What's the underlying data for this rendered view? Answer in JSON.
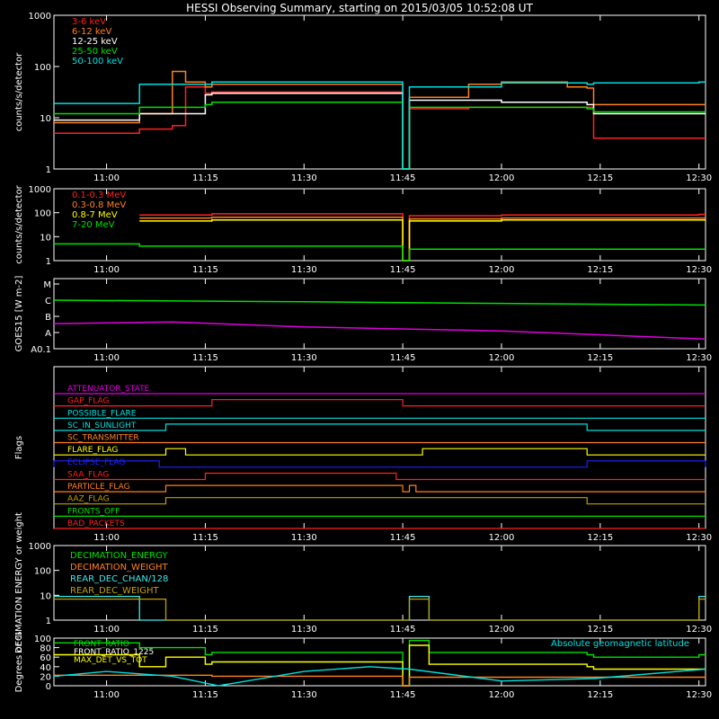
{
  "title": "HESSI Observing Summary, starting on 2015/03/05 10:52:08 UT",
  "colors": {
    "red": "#ff2020",
    "orange": "#ff8020",
    "white": "#ffffff",
    "yellow": "#ffff00",
    "green": "#00e000",
    "cyan": "#00e0e0",
    "magenta": "#e000e0",
    "blue": "#2020ff",
    "olive": "#c0a000",
    "lightcyan": "#40e8e8"
  },
  "chart_data": [
    {
      "type": "line",
      "id": "panel-1",
      "ylabel": "counts/s/detector",
      "yscale": "log",
      "ylim": [
        1,
        1000
      ],
      "y_ticks": [
        "1",
        "10",
        "100",
        "1000"
      ],
      "x_ticks": [
        "11:00",
        "11:15",
        "11:30",
        "11:45",
        "12:00",
        "12:15",
        "12:30"
      ],
      "legend": "top-left",
      "series": [
        {
          "name": "3-6 keV",
          "color": "red",
          "x": [
            "10:52",
            "11:04",
            "11:05",
            "11:10",
            "11:12",
            "11:15",
            "11:16",
            "11:45",
            "11:46",
            "11:55",
            "12:00",
            "12:10",
            "12:13",
            "12:14",
            "12:30",
            "12:31"
          ],
          "y": [
            5,
            5,
            6,
            7,
            40,
            30,
            32,
            0,
            15,
            16,
            16,
            16,
            16,
            4,
            4,
            4
          ]
        },
        {
          "name": "6-12 keV",
          "color": "orange",
          "x": [
            "10:52",
            "11:04",
            "11:05",
            "11:10",
            "11:12",
            "11:15",
            "11:16",
            "11:45",
            "11:46",
            "11:55",
            "12:00",
            "12:10",
            "12:13",
            "12:14",
            "12:30",
            "12:31"
          ],
          "y": [
            8,
            8,
            12,
            80,
            50,
            40,
            45,
            0,
            25,
            45,
            50,
            40,
            38,
            18,
            18,
            18
          ]
        },
        {
          "name": "12-25 keV",
          "color": "white",
          "x": [
            "10:52",
            "11:04",
            "11:05",
            "11:15",
            "11:16",
            "11:45",
            "11:46",
            "12:00",
            "12:13",
            "12:14",
            "12:30",
            "12:31"
          ],
          "y": [
            9,
            9,
            12,
            28,
            30,
            0,
            22,
            20,
            18,
            12,
            12,
            12
          ]
        },
        {
          "name": "25-50 keV",
          "color": "green",
          "x": [
            "10:52",
            "11:04",
            "11:05",
            "11:15",
            "11:16",
            "11:45",
            "11:46",
            "12:00",
            "12:13",
            "12:14",
            "12:30",
            "12:31"
          ],
          "y": [
            12,
            12,
            16,
            18,
            20,
            0,
            16,
            16,
            15,
            13,
            13,
            13
          ]
        },
        {
          "name": "50-100 keV",
          "color": "cyan",
          "x": [
            "10:52",
            "11:04",
            "11:05",
            "11:15",
            "11:16",
            "11:45",
            "11:46",
            "12:00",
            "12:13",
            "12:14",
            "12:30",
            "12:31"
          ],
          "y": [
            19,
            19,
            45,
            45,
            50,
            0,
            40,
            48,
            45,
            48,
            50,
            50
          ]
        }
      ]
    },
    {
      "type": "line",
      "id": "panel-2",
      "ylabel": "counts/s/detector",
      "yscale": "log",
      "ylim": [
        1,
        1000
      ],
      "y_ticks": [
        "1",
        "10",
        "100",
        "1000"
      ],
      "x_ticks": [
        "11:00",
        "11:15",
        "11:30",
        "11:45",
        "12:00",
        "12:15",
        "12:30"
      ],
      "legend": "top-left",
      "series": [
        {
          "name": "0.1-0.3 MeV",
          "color": "red",
          "x": [
            "11:05",
            "11:15",
            "11:16",
            "11:45",
            "11:46",
            "12:00",
            "12:30",
            "12:31"
          ],
          "y": [
            80,
            80,
            90,
            0,
            75,
            80,
            85,
            85
          ]
        },
        {
          "name": "0.3-0.8 MeV",
          "color": "orange",
          "x": [
            "11:05",
            "11:15",
            "11:16",
            "11:45",
            "11:46",
            "12:00",
            "12:30",
            "12:31"
          ],
          "y": [
            60,
            60,
            65,
            0,
            55,
            60,
            60,
            60
          ]
        },
        {
          "name": "0.8-7 MeV",
          "color": "yellow",
          "x": [
            "11:05",
            "11:15",
            "11:16",
            "11:45",
            "11:46",
            "12:00",
            "12:30",
            "12:31"
          ],
          "y": [
            45,
            45,
            50,
            0,
            45,
            50,
            50,
            50
          ]
        },
        {
          "name": "7-20 MeV",
          "color": "green",
          "x": [
            "10:52",
            "11:04",
            "11:05",
            "11:15",
            "11:16",
            "11:45",
            "11:46",
            "12:00",
            "12:30",
            "12:31"
          ],
          "y": [
            5,
            5,
            4,
            4,
            4,
            0,
            3,
            3,
            3,
            3
          ]
        }
      ]
    },
    {
      "type": "line",
      "id": "panel-3",
      "ylabel": "GOES15 [W m-2]",
      "y_ticks": [
        "A0.1",
        "A",
        "B",
        "C",
        "M"
      ],
      "x_ticks": [
        "11:00",
        "11:15",
        "11:30",
        "11:45",
        "12:00",
        "12:15",
        "12:30"
      ],
      "series": [
        {
          "color": "green",
          "x": [
            "10:52",
            "11:30",
            "12:00",
            "12:31"
          ],
          "y": [
            "C",
            "C",
            "C",
            "C"
          ],
          "level": [
            3.0,
            2.9,
            2.8,
            2.7
          ]
        },
        {
          "color": "magenta",
          "x": [
            "10:52",
            "11:10",
            "11:30",
            "12:00",
            "12:31"
          ],
          "y": [
            "A",
            "A",
            "A",
            "A",
            "A0.1"
          ],
          "level": [
            1.55,
            1.65,
            1.35,
            1.1,
            0.6
          ]
        }
      ]
    },
    {
      "type": "line",
      "id": "panel-4",
      "ylabel": "Flags",
      "x_ticks": [
        "11:00",
        "11:15",
        "11:30",
        "11:45",
        "12:00",
        "12:15",
        "12:30"
      ],
      "flags": [
        {
          "name": "ATTENUATOR_STATE",
          "color": "magenta",
          "on": []
        },
        {
          "name": "GAP_FLAG",
          "color": "red",
          "on": [
            [
              "11:16",
              "11:45"
            ]
          ]
        },
        {
          "name": "POSSIBLE_FLARE",
          "color": "cyan",
          "on": []
        },
        {
          "name": "SC_IN_SUNLIGHT",
          "color": "cyan",
          "on": [
            [
              "11:09",
              "12:13"
            ]
          ]
        },
        {
          "name": "SC_TRANSMITTER",
          "color": "orange",
          "on": []
        },
        {
          "name": "FLARE_FLAG",
          "color": "yellow",
          "on": [
            [
              "11:09",
              "11:12"
            ],
            [
              "11:48",
              "12:13"
            ]
          ]
        },
        {
          "name": "ECLIPSE_FLAG",
          "color": "blue",
          "on": [
            [
              "10:52",
              "11:08"
            ],
            [
              "12:13",
              "12:31"
            ]
          ]
        },
        {
          "name": "SAA_FLAG",
          "color": "red",
          "on": [
            [
              "11:15",
              "11:44"
            ]
          ]
        },
        {
          "name": "PARTICLE_FLAG",
          "color": "orange",
          "on": [
            [
              "11:09",
              "11:45"
            ],
            [
              "11:46",
              "11:47"
            ]
          ]
        },
        {
          "name": "AAZ_FLAG",
          "color": "olive",
          "on": [
            [
              "11:09",
              "12:13"
            ]
          ]
        },
        {
          "name": "FRONTS_OFF",
          "color": "green",
          "on": []
        },
        {
          "name": "BAD_PACKETS",
          "color": "red",
          "on": []
        }
      ]
    },
    {
      "type": "line",
      "id": "panel-5",
      "ylabel": "DECIMATION ENERGY or weight",
      "yscale": "log",
      "y_ticks": [
        "1",
        "10",
        "100",
        "1000"
      ],
      "x_ticks": [
        "11:00",
        "11:15",
        "11:30",
        "11:45",
        "12:00",
        "12:15",
        "12:30"
      ],
      "legend": "top-left",
      "series": [
        {
          "name": "DECIMATION_ENERGY",
          "color": "green"
        },
        {
          "name": "DECIMATION_WEIGHT",
          "color": "orange"
        },
        {
          "name": "REAR_DEC_CHAN/128",
          "color": "lightcyan",
          "x": [
            "10:52",
            "11:04",
            "11:05",
            "11:45",
            "11:46",
            "11:48",
            "11:49",
            "12:29",
            "12:30",
            "12:31"
          ],
          "y": [
            9,
            9,
            1,
            1,
            9,
            9,
            1,
            1,
            9,
            9
          ]
        },
        {
          "name": "REAR_DEC_WEIGHT",
          "color": "olive",
          "x": [
            "10:52",
            "11:08",
            "11:09",
            "11:45",
            "11:46",
            "11:48",
            "11:49",
            "12:29",
            "12:30",
            "12:31"
          ],
          "y": [
            7,
            7,
            1,
            1,
            7,
            7,
            1,
            1,
            7,
            7
          ]
        }
      ]
    },
    {
      "type": "line",
      "id": "panel-6",
      "ylabel": "Degrees or %",
      "ylim": [
        0,
        100
      ],
      "y_ticks": [
        "0",
        "20",
        "40",
        "60",
        "80",
        "100"
      ],
      "x_ticks": [
        "11:00",
        "11:15",
        "11:30",
        "11:45",
        "12:00",
        "12:15",
        "12:30"
      ],
      "series": [
        {
          "name": "FRONT_RATIO",
          "color": "green",
          "x": [
            "10:52",
            "11:04",
            "11:05",
            "11:15",
            "11:16",
            "11:45",
            "11:46",
            "11:48",
            "11:49",
            "12:13",
            "12:14",
            "12:30",
            "12:31"
          ],
          "y": [
            90,
            90,
            80,
            65,
            70,
            0,
            95,
            95,
            70,
            65,
            60,
            65,
            65
          ]
        },
        {
          "name": "FRONT_RATIO_1225",
          "color": "white"
        },
        {
          "name": "MAX_DET_VS_TOT",
          "color": "yellow",
          "x": [
            "10:52",
            "11:04",
            "11:05",
            "11:08",
            "11:09",
            "11:15",
            "11:16",
            "11:45",
            "11:46",
            "11:48",
            "11:49",
            "12:13",
            "12:14",
            "12:30",
            "12:31"
          ],
          "y": [
            65,
            65,
            40,
            40,
            60,
            45,
            50,
            0,
            85,
            85,
            45,
            40,
            35,
            35,
            35
          ]
        },
        {
          "name": "",
          "color": "orange",
          "x": [
            "10:52",
            "11:15",
            "11:16",
            "11:45",
            "11:46",
            "12:31"
          ],
          "y": [
            22,
            22,
            20,
            0,
            18,
            20
          ]
        },
        {
          "name": "Absolute geomagnetic latitude",
          "color": "cyan",
          "x": [
            "10:52",
            "11:00",
            "11:10",
            "11:17",
            "11:30",
            "11:40",
            "11:46",
            "12:00",
            "12:14",
            "12:31"
          ],
          "y": [
            20,
            30,
            20,
            0,
            30,
            40,
            35,
            10,
            15,
            35
          ]
        }
      ]
    }
  ]
}
